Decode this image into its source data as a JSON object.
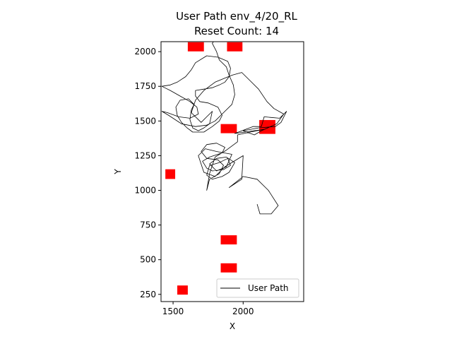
{
  "chart_data": {
    "type": "line",
    "title": "User Path env_4/20_RL",
    "subtitle": "Reset Count: 14",
    "xlabel": "X",
    "ylabel": "Y",
    "xlim": [
      1414,
      2432
    ],
    "ylim": [
      198,
      2072
    ],
    "xticks": [
      1500,
      2000
    ],
    "yticks": [
      250,
      500,
      750,
      1000,
      1250,
      1500,
      1750,
      2000
    ],
    "grid": false,
    "legend": {
      "position": "lower-right",
      "label": "User Path"
    },
    "colors": {
      "path": "#000000",
      "obstacle": "#ff0000"
    },
    "obstacles": [
      {
        "x": [
          1605,
          1720
        ],
        "y": [
          2002,
          2068
        ]
      },
      {
        "x": [
          1885,
          1995
        ],
        "y": [
          2002,
          2068
        ]
      },
      {
        "x": [
          1840,
          1955
        ],
        "y": [
          1412,
          1478
        ]
      },
      {
        "x": [
          2115,
          2230
        ],
        "y": [
          1407,
          1507
        ]
      },
      {
        "x": [
          1445,
          1515
        ],
        "y": [
          1082,
          1152
        ]
      },
      {
        "x": [
          1840,
          1955
        ],
        "y": [
          610,
          676
        ]
      },
      {
        "x": [
          1840,
          1955
        ],
        "y": [
          408,
          474
        ]
      },
      {
        "x": [
          1530,
          1605
        ],
        "y": [
          248,
          314
        ]
      }
    ],
    "series": [
      {
        "name": "User Path",
        "points": [
          [
            2100,
            900
          ],
          [
            2120,
            830
          ],
          [
            2200,
            830
          ],
          [
            2250,
            890
          ],
          [
            2180,
            1000
          ],
          [
            2100,
            1080
          ],
          [
            2000,
            1100
          ],
          [
            1900,
            1020
          ],
          [
            1990,
            1080
          ],
          [
            2000,
            1250
          ],
          [
            1870,
            1170
          ],
          [
            1800,
            1100
          ],
          [
            1720,
            1130
          ],
          [
            1680,
            1250
          ],
          [
            1730,
            1300
          ],
          [
            1810,
            1280
          ],
          [
            1920,
            1260
          ],
          [
            1880,
            1170
          ],
          [
            1810,
            1140
          ],
          [
            1760,
            1190
          ],
          [
            1810,
            1230
          ],
          [
            1880,
            1240
          ],
          [
            1940,
            1200
          ],
          [
            1900,
            1130
          ],
          [
            1850,
            1100
          ],
          [
            1780,
            1080
          ],
          [
            1740,
            1110
          ],
          [
            1760,
            1180
          ],
          [
            1830,
            1200
          ],
          [
            1890,
            1230
          ],
          [
            1910,
            1180
          ],
          [
            1860,
            1150
          ],
          [
            1780,
            1140
          ],
          [
            1740,
            1160
          ],
          [
            1710,
            1210
          ],
          [
            1760,
            1240
          ],
          [
            1850,
            1270
          ],
          [
            1870,
            1310
          ],
          [
            1810,
            1340
          ],
          [
            1740,
            1330
          ],
          [
            1700,
            1280
          ],
          [
            1740,
            1230
          ],
          [
            1820,
            1220
          ],
          [
            1860,
            1180
          ],
          [
            1830,
            1120
          ],
          [
            1760,
            1080
          ],
          [
            1740,
            1000
          ],
          [
            1760,
            1120
          ],
          [
            1800,
            1240
          ],
          [
            1880,
            1290
          ],
          [
            1960,
            1350
          ],
          [
            1960,
            1400
          ],
          [
            2050,
            1420
          ],
          [
            2150,
            1440
          ],
          [
            1940,
            1410
          ],
          [
            2070,
            1460
          ],
          [
            2130,
            1460
          ],
          [
            2150,
            1530
          ],
          [
            2260,
            1520
          ],
          [
            2310,
            1570
          ],
          [
            2270,
            1490
          ],
          [
            2230,
            1460
          ],
          [
            2110,
            1450
          ],
          [
            2000,
            1430
          ],
          [
            2080,
            1400
          ],
          [
            2130,
            1430
          ],
          [
            2240,
            1480
          ],
          [
            2290,
            1550
          ],
          [
            2220,
            1590
          ],
          [
            2170,
            1640
          ],
          [
            2110,
            1730
          ],
          [
            2050,
            1790
          ],
          [
            1990,
            1850
          ],
          [
            1920,
            1830
          ],
          [
            1800,
            1780
          ],
          [
            1720,
            1720
          ],
          [
            1660,
            1650
          ],
          [
            1630,
            1560
          ],
          [
            1700,
            1490
          ],
          [
            1740,
            1530
          ],
          [
            1780,
            1570
          ],
          [
            1760,
            1480
          ],
          [
            1720,
            1450
          ],
          [
            1680,
            1430
          ],
          [
            1640,
            1450
          ],
          [
            1620,
            1510
          ],
          [
            1630,
            1580
          ],
          [
            1650,
            1620
          ],
          [
            1610,
            1660
          ],
          [
            1550,
            1650
          ],
          [
            1520,
            1600
          ],
          [
            1530,
            1540
          ],
          [
            1560,
            1490
          ],
          [
            1600,
            1450
          ],
          [
            1640,
            1420
          ],
          [
            1720,
            1420
          ],
          [
            1780,
            1460
          ],
          [
            1830,
            1500
          ],
          [
            1850,
            1540
          ],
          [
            1820,
            1600
          ],
          [
            1750,
            1630
          ],
          [
            1690,
            1640
          ],
          [
            1660,
            1680
          ],
          [
            1660,
            1720
          ],
          [
            1720,
            1730
          ],
          [
            1780,
            1740
          ],
          [
            1830,
            1760
          ],
          [
            1870,
            1780
          ],
          [
            1900,
            1820
          ],
          [
            1910,
            1880
          ],
          [
            1890,
            1930
          ],
          [
            1820,
            1960
          ],
          [
            1740,
            1970
          ],
          [
            1660,
            1920
          ],
          [
            1630,
            1870
          ],
          [
            1590,
            1820
          ],
          [
            1530,
            1780
          ],
          [
            1480,
            1760
          ],
          [
            1420,
            1750
          ],
          [
            1480,
            1720
          ],
          [
            1550,
            1680
          ],
          [
            1620,
            1640
          ],
          [
            1670,
            1600
          ],
          [
            1680,
            1550
          ],
          [
            1620,
            1520
          ],
          [
            1540,
            1530
          ],
          [
            1460,
            1560
          ],
          [
            1420,
            1570
          ],
          [
            1470,
            1540
          ],
          [
            1560,
            1480
          ],
          [
            1660,
            1460
          ],
          [
            1740,
            1470
          ],
          [
            1800,
            1500
          ],
          [
            1860,
            1560
          ],
          [
            1920,
            1620
          ],
          [
            1940,
            1690
          ],
          [
            1930,
            1760
          ],
          [
            1900,
            1830
          ],
          [
            1880,
            1890
          ],
          [
            1830,
            1940
          ],
          [
            1810,
            2000
          ],
          [
            1780,
            2060
          ],
          [
            1790,
            2075
          ]
        ]
      }
    ]
  }
}
